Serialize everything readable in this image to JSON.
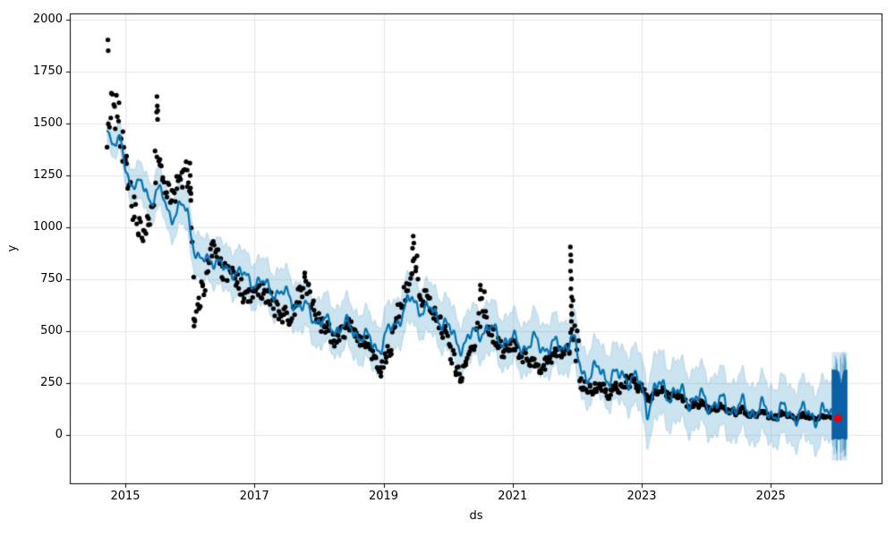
{
  "chart_data": {
    "type": "scatter+line",
    "title": "",
    "xlabel": "ds",
    "ylabel": "y",
    "grid": true,
    "legend": "none",
    "x_ticks": [
      2015,
      2017,
      2019,
      2021,
      2023,
      2025
    ],
    "y_ticks": [
      0,
      250,
      500,
      750,
      1000,
      1250,
      1500,
      1750,
      2000
    ],
    "xlim": [
      2014.14,
      2026.73
    ],
    "ylim": [
      -236,
      2030
    ],
    "colors": {
      "observed": "#000000",
      "forecast_line": "#0072B2",
      "uncertainty_band": "#0072B2",
      "uncertainty_alpha": 0.2,
      "burst_dark": "#0b62a6",
      "highlight": "#e8000b",
      "gridline": "#e6e6e6",
      "spine": "#000000"
    },
    "observed_anchors": [
      [
        2014.72,
        1450,
        120
      ],
      [
        2014.78,
        1550,
        150
      ],
      [
        2014.84,
        1560,
        130
      ],
      [
        2014.9,
        1480,
        130
      ],
      [
        2014.96,
        1400,
        100
      ],
      [
        2015.02,
        1280,
        80
      ],
      [
        2015.08,
        1180,
        80
      ],
      [
        2015.14,
        1080,
        90
      ],
      [
        2015.2,
        1000,
        70
      ],
      [
        2015.28,
        980,
        60
      ],
      [
        2015.36,
        1030,
        60
      ],
      [
        2015.42,
        1120,
        60
      ],
      [
        2015.47,
        1300,
        150
      ],
      [
        2015.5,
        1450,
        170
      ],
      [
        2015.54,
        1300,
        90
      ],
      [
        2015.58,
        1230,
        70
      ],
      [
        2015.64,
        1180,
        60
      ],
      [
        2015.72,
        1140,
        60
      ],
      [
        2015.8,
        1190,
        60
      ],
      [
        2015.88,
        1240,
        60
      ],
      [
        2015.96,
        1260,
        80
      ],
      [
        2016.02,
        1050,
        150
      ],
      [
        2016.08,
        650,
        130
      ],
      [
        2016.14,
        620,
        90
      ],
      [
        2016.2,
        700,
        80
      ],
      [
        2016.28,
        820,
        90
      ],
      [
        2016.34,
        900,
        70
      ],
      [
        2016.42,
        860,
        70
      ],
      [
        2016.5,
        800,
        70
      ],
      [
        2016.58,
        770,
        60
      ],
      [
        2016.66,
        780,
        60
      ],
      [
        2016.74,
        740,
        60
      ],
      [
        2016.82,
        680,
        60
      ],
      [
        2016.9,
        660,
        50
      ],
      [
        2016.98,
        680,
        50
      ],
      [
        2017.06,
        690,
        50
      ],
      [
        2017.14,
        680,
        50
      ],
      [
        2017.22,
        660,
        50
      ],
      [
        2017.3,
        640,
        60
      ],
      [
        2017.38,
        600,
        60
      ],
      [
        2017.46,
        580,
        50
      ],
      [
        2017.54,
        560,
        50
      ],
      [
        2017.62,
        600,
        50
      ],
      [
        2017.7,
        680,
        60
      ],
      [
        2017.78,
        730,
        60
      ],
      [
        2017.84,
        690,
        50
      ],
      [
        2017.92,
        620,
        50
      ],
      [
        2018.0,
        560,
        50
      ],
      [
        2018.08,
        520,
        40
      ],
      [
        2018.16,
        490,
        40
      ],
      [
        2018.24,
        470,
        40
      ],
      [
        2018.32,
        480,
        50
      ],
      [
        2018.4,
        500,
        50
      ],
      [
        2018.48,
        520,
        50
      ],
      [
        2018.56,
        490,
        40
      ],
      [
        2018.64,
        450,
        40
      ],
      [
        2018.72,
        430,
        40
      ],
      [
        2018.8,
        400,
        40
      ],
      [
        2018.88,
        360,
        40
      ],
      [
        2018.96,
        320,
        40
      ],
      [
        2019.04,
        360,
        50
      ],
      [
        2019.12,
        440,
        60
      ],
      [
        2019.2,
        560,
        70
      ],
      [
        2019.28,
        640,
        60
      ],
      [
        2019.36,
        680,
        60
      ],
      [
        2019.44,
        780,
        100
      ],
      [
        2019.5,
        820,
        110
      ],
      [
        2019.56,
        720,
        70
      ],
      [
        2019.64,
        650,
        60
      ],
      [
        2019.72,
        610,
        50
      ],
      [
        2019.8,
        580,
        50
      ],
      [
        2019.88,
        540,
        50
      ],
      [
        2019.96,
        480,
        50
      ],
      [
        2020.04,
        400,
        50
      ],
      [
        2020.12,
        320,
        40
      ],
      [
        2020.2,
        290,
        35
      ],
      [
        2020.28,
        330,
        40
      ],
      [
        2020.36,
        400,
        50
      ],
      [
        2020.44,
        480,
        60
      ],
      [
        2020.5,
        600,
        90
      ],
      [
        2020.56,
        640,
        70
      ],
      [
        2020.62,
        540,
        60
      ],
      [
        2020.7,
        470,
        50
      ],
      [
        2020.78,
        440,
        40
      ],
      [
        2020.86,
        420,
        40
      ],
      [
        2020.94,
        440,
        40
      ],
      [
        2021.02,
        430,
        40
      ],
      [
        2021.1,
        400,
        40
      ],
      [
        2021.18,
        380,
        35
      ],
      [
        2021.26,
        360,
        35
      ],
      [
        2021.34,
        340,
        35
      ],
      [
        2021.42,
        330,
        35
      ],
      [
        2021.5,
        350,
        35
      ],
      [
        2021.58,
        370,
        35
      ],
      [
        2021.66,
        390,
        35
      ],
      [
        2021.74,
        400,
        35
      ],
      [
        2021.82,
        410,
        35
      ],
      [
        2021.88,
        430,
        40
      ],
      [
        2021.94,
        600,
        250
      ],
      [
        2022.0,
        420,
        120
      ],
      [
        2022.06,
        280,
        60
      ],
      [
        2022.12,
        240,
        40
      ],
      [
        2022.2,
        220,
        35
      ],
      [
        2022.28,
        210,
        30
      ],
      [
        2022.36,
        225,
        30
      ],
      [
        2022.44,
        215,
        30
      ],
      [
        2022.52,
        205,
        30
      ],
      [
        2022.6,
        215,
        30
      ],
      [
        2022.68,
        230,
        30
      ],
      [
        2022.76,
        260,
        35
      ],
      [
        2022.84,
        265,
        35
      ],
      [
        2022.92,
        235,
        30
      ],
      [
        2023.0,
        215,
        30
      ],
      [
        2023.08,
        200,
        25
      ],
      [
        2023.16,
        195,
        25
      ],
      [
        2023.24,
        205,
        25
      ],
      [
        2023.32,
        215,
        25
      ],
      [
        2023.4,
        200,
        25
      ],
      [
        2023.48,
        185,
        20
      ],
      [
        2023.56,
        175,
        20
      ],
      [
        2023.64,
        165,
        20
      ],
      [
        2023.72,
        158,
        18
      ],
      [
        2023.8,
        152,
        18
      ],
      [
        2023.88,
        148,
        16
      ],
      [
        2023.96,
        143,
        16
      ],
      [
        2024.04,
        138,
        15
      ],
      [
        2024.12,
        133,
        15
      ],
      [
        2024.2,
        128,
        14
      ],
      [
        2024.28,
        124,
        14
      ],
      [
        2024.36,
        120,
        13
      ],
      [
        2024.44,
        116,
        13
      ],
      [
        2024.52,
        112,
        12
      ],
      [
        2024.6,
        108,
        12
      ],
      [
        2024.68,
        105,
        12
      ],
      [
        2024.76,
        102,
        11
      ],
      [
        2024.84,
        100,
        11
      ],
      [
        2024.92,
        98,
        11
      ],
      [
        2025.0,
        96,
        10
      ],
      [
        2025.08,
        94,
        10
      ],
      [
        2025.16,
        92,
        10
      ],
      [
        2025.24,
        94,
        10
      ],
      [
        2025.32,
        92,
        10
      ],
      [
        2025.4,
        90,
        10
      ],
      [
        2025.48,
        88,
        10
      ],
      [
        2025.56,
        86,
        10
      ],
      [
        2025.64,
        88,
        10
      ],
      [
        2025.72,
        86,
        10
      ],
      [
        2025.8,
        84,
        10
      ],
      [
        2025.88,
        82,
        10
      ],
      [
        2025.95,
        80,
        10
      ]
    ],
    "observed_outliers": [
      [
        2014.73,
        1903
      ],
      [
        2014.735,
        1851
      ],
      [
        2015.485,
        1555
      ],
      [
        2015.49,
        1630
      ],
      [
        2015.495,
        1585
      ],
      [
        2015.5,
        1520
      ],
      [
        2016.0,
        1310
      ],
      [
        2016.005,
        1250
      ],
      [
        2016.01,
        1190
      ],
      [
        2016.015,
        1130
      ],
      [
        2016.06,
        560
      ],
      [
        2016.065,
        525
      ],
      [
        2018.96,
        284
      ],
      [
        2019.45,
        900
      ],
      [
        2019.46,
        958
      ],
      [
        2019.47,
        925
      ],
      [
        2020.19,
        258
      ],
      [
        2020.21,
        262
      ],
      [
        2020.5,
        722
      ],
      [
        2020.505,
        700
      ],
      [
        2021.895,
        906
      ],
      [
        2021.9,
        868
      ],
      [
        2021.905,
        838
      ],
      [
        2021.897,
        790
      ],
      [
        2021.91,
        752
      ],
      [
        2021.903,
        705
      ],
      [
        2021.915,
        665
      ],
      [
        2021.908,
        622
      ],
      [
        2021.918,
        585
      ],
      [
        2021.912,
        548
      ],
      [
        2021.92,
        510
      ],
      [
        2021.922,
        468
      ]
    ],
    "forecast_anchors": [
      [
        2014.72,
        1480
      ],
      [
        2014.8,
        1405
      ],
      [
        2014.86,
        1390
      ],
      [
        2014.92,
        1425
      ],
      [
        2015.0,
        1300
      ],
      [
        2015.08,
        1215
      ],
      [
        2015.16,
        1195
      ],
      [
        2015.24,
        1200
      ],
      [
        2015.32,
        1195
      ],
      [
        2015.4,
        1120
      ],
      [
        2015.48,
        1165
      ],
      [
        2015.56,
        1160
      ],
      [
        2015.64,
        1110
      ],
      [
        2015.72,
        1050
      ],
      [
        2015.8,
        1065
      ],
      [
        2015.88,
        1100
      ],
      [
        2015.96,
        1090
      ],
      [
        2016.04,
        950
      ],
      [
        2016.1,
        850
      ],
      [
        2016.18,
        825
      ],
      [
        2016.26,
        855
      ],
      [
        2016.34,
        860
      ],
      [
        2016.44,
        820
      ],
      [
        2016.54,
        790
      ],
      [
        2016.64,
        810
      ],
      [
        2016.74,
        780
      ],
      [
        2016.84,
        760
      ],
      [
        2016.94,
        750
      ],
      [
        2017.04,
        740
      ],
      [
        2017.14,
        720
      ],
      [
        2017.24,
        705
      ],
      [
        2017.34,
        690
      ],
      [
        2017.44,
        675
      ],
      [
        2017.54,
        665
      ],
      [
        2017.64,
        640
      ],
      [
        2017.74,
        610
      ],
      [
        2017.84,
        600
      ],
      [
        2017.94,
        565
      ],
      [
        2018.04,
        545
      ],
      [
        2018.14,
        530
      ],
      [
        2018.24,
        515
      ],
      [
        2018.34,
        525
      ],
      [
        2018.44,
        520
      ],
      [
        2018.54,
        505
      ],
      [
        2018.64,
        480
      ],
      [
        2018.74,
        460
      ],
      [
        2018.84,
        440
      ],
      [
        2018.94,
        425
      ],
      [
        2019.04,
        470
      ],
      [
        2019.14,
        520
      ],
      [
        2019.24,
        570
      ],
      [
        2019.34,
        615
      ],
      [
        2019.44,
        650
      ],
      [
        2019.54,
        625
      ],
      [
        2019.64,
        605
      ],
      [
        2019.74,
        590
      ],
      [
        2019.84,
        575
      ],
      [
        2019.94,
        550
      ],
      [
        2020.04,
        490
      ],
      [
        2020.14,
        440
      ],
      [
        2020.24,
        445
      ],
      [
        2020.34,
        465
      ],
      [
        2020.44,
        490
      ],
      [
        2020.54,
        515
      ],
      [
        2020.64,
        510
      ],
      [
        2020.74,
        485
      ],
      [
        2020.84,
        465
      ],
      [
        2020.94,
        455
      ],
      [
        2021.04,
        445
      ],
      [
        2021.14,
        435
      ],
      [
        2021.24,
        430
      ],
      [
        2021.34,
        445
      ],
      [
        2021.44,
        435
      ],
      [
        2021.54,
        425
      ],
      [
        2021.64,
        420
      ],
      [
        2021.74,
        430
      ],
      [
        2021.84,
        445
      ],
      [
        2021.92,
        470
      ],
      [
        2021.98,
        400
      ],
      [
        2022.06,
        320
      ],
      [
        2022.14,
        295
      ],
      [
        2022.24,
        300
      ],
      [
        2022.34,
        310
      ],
      [
        2022.44,
        295
      ],
      [
        2022.54,
        280
      ],
      [
        2022.64,
        275
      ],
      [
        2022.74,
        290
      ],
      [
        2022.84,
        280
      ],
      [
        2022.94,
        255
      ],
      [
        2023.02,
        200
      ],
      [
        2023.08,
        135
      ],
      [
        2023.16,
        195
      ],
      [
        2023.26,
        225
      ],
      [
        2023.36,
        220
      ],
      [
        2023.46,
        210
      ],
      [
        2023.56,
        195
      ],
      [
        2023.66,
        185
      ],
      [
        2023.76,
        180
      ],
      [
        2023.86,
        172
      ],
      [
        2023.96,
        165
      ],
      [
        2024.06,
        158
      ],
      [
        2024.16,
        152
      ],
      [
        2024.26,
        146
      ],
      [
        2024.36,
        140
      ],
      [
        2024.46,
        135
      ],
      [
        2024.56,
        130
      ],
      [
        2024.66,
        126
      ],
      [
        2024.76,
        122
      ],
      [
        2024.86,
        118
      ],
      [
        2024.96,
        115
      ],
      [
        2025.06,
        112
      ],
      [
        2025.16,
        110
      ],
      [
        2025.26,
        108
      ],
      [
        2025.36,
        106
      ],
      [
        2025.46,
        104
      ],
      [
        2025.56,
        102
      ],
      [
        2025.66,
        101
      ],
      [
        2025.76,
        100
      ],
      [
        2025.86,
        99
      ],
      [
        2025.96,
        100
      ]
    ],
    "band_halfwidth_anchors": [
      [
        2014.72,
        55
      ],
      [
        2014.9,
        65
      ],
      [
        2015.2,
        90
      ],
      [
        2015.6,
        95
      ],
      [
        2016.0,
        100
      ],
      [
        2016.5,
        110
      ],
      [
        2017.0,
        110
      ],
      [
        2017.5,
        112
      ],
      [
        2018.0,
        115
      ],
      [
        2018.5,
        118
      ],
      [
        2019.0,
        120
      ],
      [
        2019.5,
        118
      ],
      [
        2020.0,
        125
      ],
      [
        2020.5,
        122
      ],
      [
        2021.0,
        122
      ],
      [
        2021.5,
        125
      ],
      [
        2022.0,
        128
      ],
      [
        2022.5,
        132
      ],
      [
        2023.0,
        140
      ],
      [
        2023.2,
        155
      ],
      [
        2023.6,
        145
      ],
      [
        2024.0,
        142
      ],
      [
        2024.5,
        140
      ],
      [
        2025.0,
        138
      ],
      [
        2025.5,
        140
      ],
      [
        2025.96,
        145
      ]
    ],
    "forecast_burst": {
      "t_start": 2025.96,
      "t_end": 2026.17,
      "dark_top": 312,
      "dark_notch": 235,
      "dark_bottom": -18,
      "light_top": 400,
      "light_bottom": -122
    },
    "highlight_point": {
      "t": 2026.04,
      "y": 82
    },
    "scatter_step_years": 0.0192,
    "marker_radius": 2.6
  }
}
